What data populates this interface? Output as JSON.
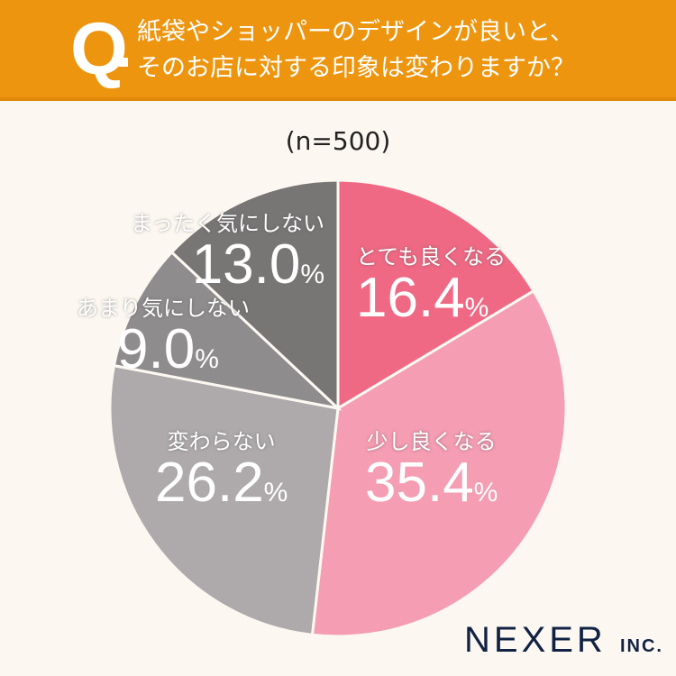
{
  "header": {
    "q_mark": "Q",
    "title_line1": "紙袋やショッパーのデザインが良いと、",
    "title_line2": "そのお店に対する印象は変わりますか？",
    "bg_color": "#ee950f"
  },
  "sample_size": "(n=500)",
  "logo": {
    "name": "NEXER",
    "suffix": "INC."
  },
  "chart_data": {
    "type": "pie",
    "title": "紙袋やショッパーのデザインが良いと、そのお店に対する印象は変わりますか？",
    "subtitle": "(n=500)",
    "categories": [
      "とても良くなる",
      "少し良くなる",
      "変わらない",
      "あまり気にしない",
      "まったく気にしない"
    ],
    "values": [
      16.4,
      35.4,
      26.2,
      9.0,
      13.0
    ],
    "colors": [
      "#ef6984",
      "#f59db2",
      "#aeaaab",
      "#8f8c8d",
      "#787575"
    ],
    "start_angle": "12 o'clock",
    "direction": "clockwise",
    "unit": "%"
  },
  "labels": [
    {
      "cat": "とても良くなる",
      "pct": "16.4",
      "unit": "%"
    },
    {
      "cat": "少し良くなる",
      "pct": "35.4",
      "unit": "%"
    },
    {
      "cat": "変わらない",
      "pct": "26.2",
      "unit": "%"
    },
    {
      "cat": "あまり気にしない",
      "pct": "9.0",
      "unit": "%"
    },
    {
      "cat": "まったく気にしない",
      "pct": "13.0",
      "unit": "%"
    }
  ]
}
